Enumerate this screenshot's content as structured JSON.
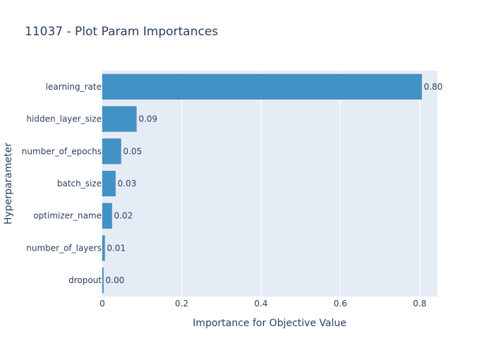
{
  "chart_data": {
    "type": "bar",
    "orientation": "horizontal",
    "title": "11037 - Plot Param Importances",
    "xlabel": "Importance for Objective Value",
    "ylabel": "Hyperparameter",
    "xlim": [
      0,
      0.845
    ],
    "xticks": [
      "0",
      "0.2",
      "0.4",
      "0.6",
      "0.8"
    ],
    "grid": true,
    "bar_color": "#4292c6",
    "background_color": "#e5ecf6",
    "categories": [
      "learning_rate",
      "hidden_layer_size",
      "number_of_epochs",
      "batch_size",
      "optimizer_name",
      "number_of_layers",
      "dropout"
    ],
    "values": [
      0.805,
      0.086,
      0.047,
      0.033,
      0.024,
      0.006,
      0.002
    ],
    "value_labels": [
      "0.80",
      "0.09",
      "0.05",
      "0.03",
      "0.02",
      "0.01",
      "0.00"
    ]
  }
}
